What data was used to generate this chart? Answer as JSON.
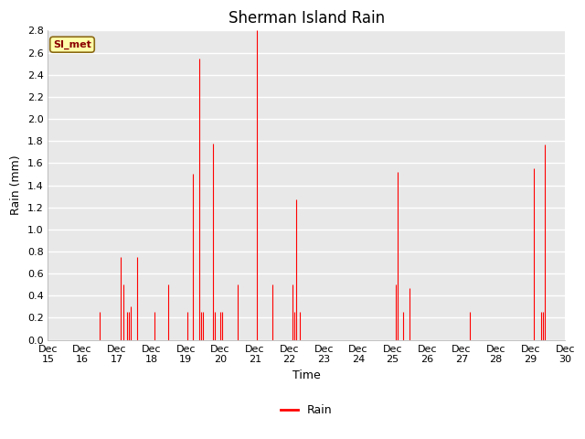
{
  "title": "Sherman Island Rain",
  "xlabel": "Time",
  "ylabel": "Rain (mm)",
  "legend_label": "Rain",
  "legend_box_label": "SI_met",
  "ylim": [
    0.0,
    2.8
  ],
  "yticks": [
    0.0,
    0.2,
    0.4,
    0.6,
    0.8,
    1.0,
    1.2,
    1.4,
    1.6,
    1.8,
    2.0,
    2.2,
    2.4,
    2.6,
    2.8
  ],
  "xtick_labels": [
    "Dec\n15",
    "Dec\n16",
    "Dec\n17",
    "Dec\n18",
    "Dec\n19",
    "Dec\n20",
    "Dec\n21",
    "Dec\n22",
    "Dec\n23",
    "Dec\n24",
    "Dec\n25",
    "Dec\n26",
    "Dec\n27",
    "Dec\n28",
    "Dec\n29",
    "Dec\n30"
  ],
  "line_color": "#ff0000",
  "line_width": 0.8,
  "bg_color": "#ffffff",
  "plot_bg_color": "#e8e8e8",
  "grid_color": "#ffffff",
  "title_fontsize": 12,
  "axis_label_fontsize": 9,
  "tick_fontsize": 8,
  "start_day": 15,
  "end_day": 30,
  "spike_x": [
    16.5,
    17.1,
    17.2,
    17.3,
    17.35,
    17.4,
    17.6,
    18.1,
    18.5,
    19.05,
    19.2,
    19.4,
    19.45,
    19.5,
    19.8,
    19.85,
    20.0,
    20.05,
    20.5,
    21.05,
    21.5,
    22.1,
    22.15,
    22.2,
    22.3,
    25.1,
    25.15,
    25.3,
    25.5,
    27.25,
    29.1,
    29.3,
    29.35,
    29.4
  ],
  "spike_y": [
    0.25,
    0.75,
    0.5,
    0.25,
    0.25,
    0.3,
    0.75,
    0.25,
    0.5,
    0.25,
    1.5,
    2.55,
    0.25,
    0.25,
    1.78,
    0.25,
    0.25,
    0.25,
    0.5,
    2.8,
    0.5,
    0.5,
    0.25,
    1.27,
    0.25,
    0.5,
    1.52,
    0.25,
    0.47,
    0.25,
    1.55,
    0.25,
    0.25,
    1.77
  ]
}
